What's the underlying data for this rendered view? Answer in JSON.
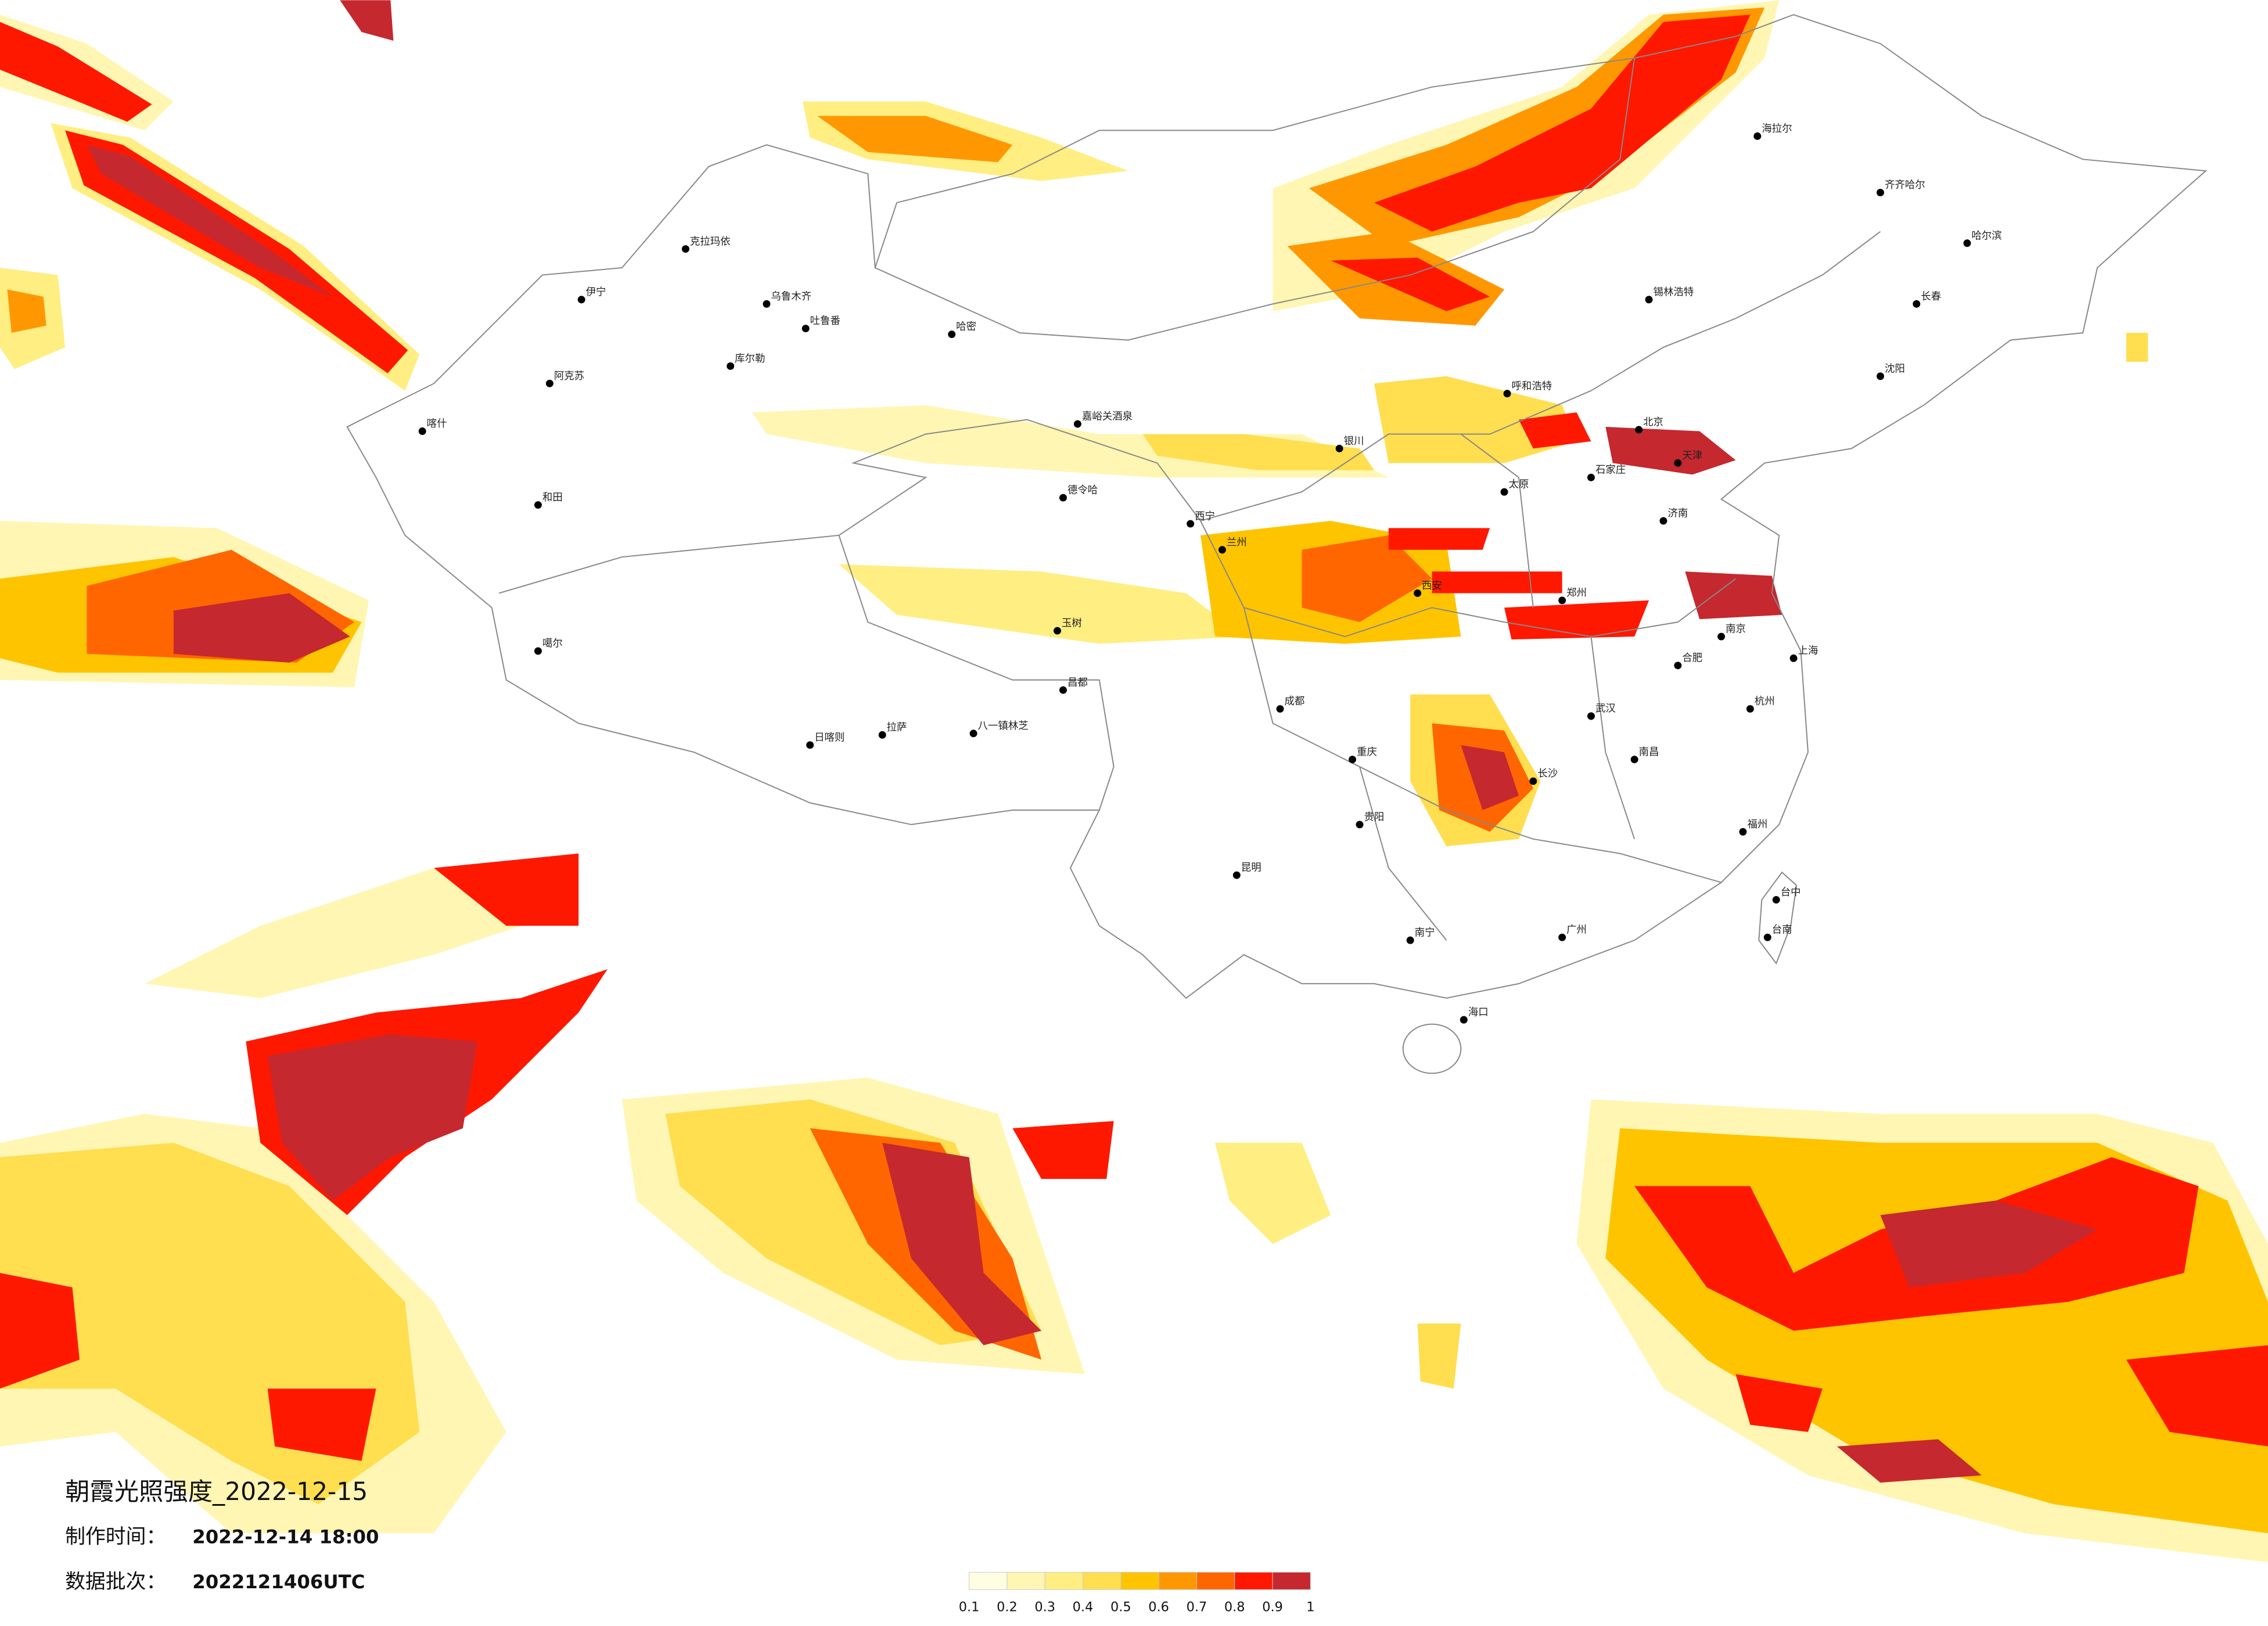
{
  "map": {
    "title": "朝霞光照强度_2022-12-15",
    "made_label": "制作时间：",
    "made_value": "2022-12-14 18:00",
    "batch_label": "数据批次：",
    "batch_value": "2022121406UTC",
    "legend": {
      "colors": [
        "#fffde2",
        "#fff6b3",
        "#ffee82",
        "#ffde4f",
        "#ffc400",
        "#ff9800",
        "#ff6600",
        "#ff1800",
        "#c5282f"
      ],
      "ticks": [
        0.1,
        0.2,
        0.3,
        0.4,
        0.5,
        0.6,
        0.7,
        0.8,
        0.9,
        1
      ]
    },
    "cities": [
      "克拉玛依",
      "伊宁",
      "乌鲁木齐",
      "吐鲁番",
      "哈密",
      "库尔勒",
      "阿克苏",
      "喀什",
      "和田",
      "噶尔",
      "嘉峪关酒泉",
      "德令哈",
      "玉树",
      "日喀则",
      "拉萨",
      "八一镇林芝",
      "昌都",
      "西宁",
      "兰州",
      "银川",
      "呼和浩特",
      "北京",
      "天津",
      "石家庄",
      "太原",
      "济南",
      "郑州",
      "西安",
      "武汉",
      "长沙",
      "南昌",
      "合肥",
      "南京",
      "杭州",
      "上海",
      "福州",
      "广州",
      "南宁",
      "海口",
      "贵阳",
      "昆明",
      "成都",
      "重庆",
      "哈尔滨",
      "长春",
      "沈阳",
      "海拉尔",
      "齐齐哈尔",
      "锡林浩特",
      "台中",
      "台南"
    ]
  }
}
